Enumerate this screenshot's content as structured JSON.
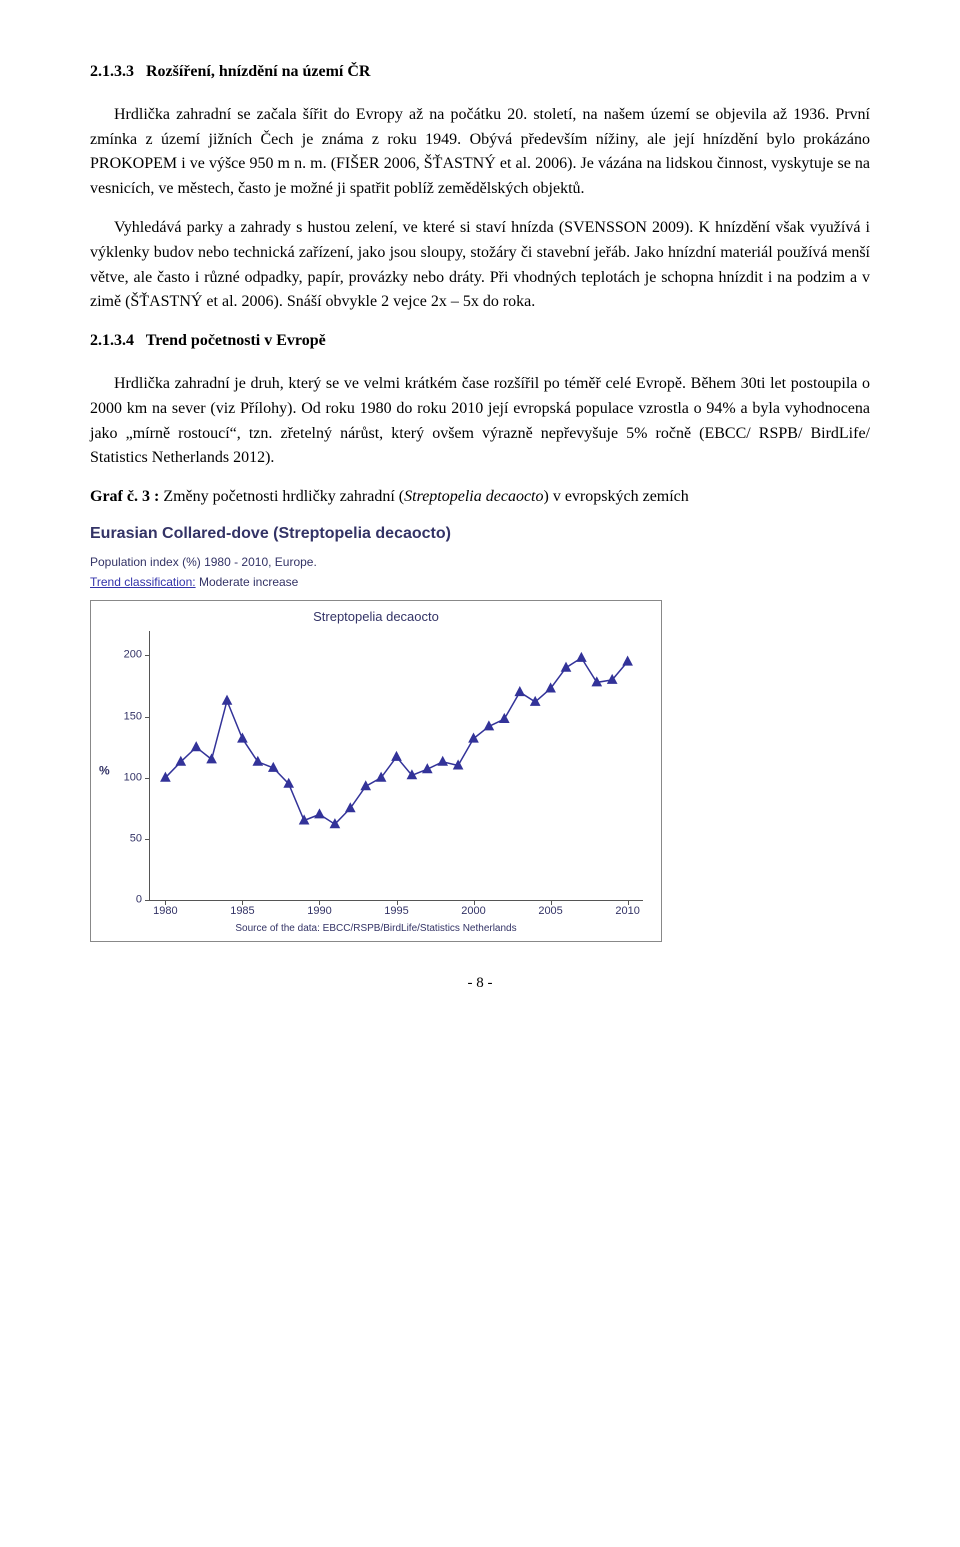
{
  "section1": {
    "number": "2.1.3.3",
    "title": "Rozšíření, hnízdění na území ČR",
    "p1": "Hrdlička zahradní se začala šířit do Evropy až na počátku 20. století, na našem území se objevila až 1936. První zmínka z území jižních Čech je známa z roku 1949. Obývá především nížiny, ale její hnízdění bylo prokázáno PROKOPEM i ve výšce 950 m n. m. (FIŠER 2006, ŠŤASTNÝ et al. 2006). Je vázána na lidskou činnost, vyskytuje se na vesnicích, ve městech, často je možné ji spatřit poblíž zemědělských objektů.",
    "p2": "Vyhledává parky a zahrady s hustou zelení, ve které si staví hnízda (SVENSSON 2009). K hnízdění však využívá i výklenky budov nebo technická zařízení, jako jsou sloupy, stožáry či stavební jeřáb. Jako hnízdní materiál používá menší větve, ale často i různé odpadky, papír, provázky nebo dráty. Při vhodných teplotách je schopna hnízdit i na podzim a v zimě (ŠŤASTNÝ et al. 2006). Snáší obvykle 2 vejce 2x – 5x do roka."
  },
  "section2": {
    "number": "2.1.3.4",
    "title": "Trend početnosti v Evropě",
    "p1": "Hrdlička zahradní je druh, který se ve velmi krátkém čase rozšířil po téměř celé Evropě. Během 30ti let postoupila o 2000 km na sever (viz Přílohy). Od roku 1980 do roku 2010 její evropská populace vzrostla o 94% a byla vyhodnocena jako „mírně rostoucí“, tzn. zřetelný nárůst, který ovšem výrazně nepřevyšuje 5% ročně (EBCC/ RSPB/ BirdLife/ Statistics Netherlands 2012)."
  },
  "graf": {
    "label_prefix": "Graf č. 3 :",
    "label_text": " Změny početnosti hrdličky zahradní (",
    "label_italic": "Streptopelia decaocto",
    "label_suffix": ") v evropských zemích"
  },
  "chart": {
    "main_title": "Eurasian Collared-dove (Streptopelia decaocto)",
    "sub1": "Population index (%) 1980 - 2010, Europe.",
    "sub2_label": "Trend classification:",
    "sub2_value": "Moderate increase",
    "inner_title": "Streptopelia decaocto",
    "source": "Source of the data: EBCC/RSPB/BirdLife/Statistics Netherlands",
    "ylabel": "%",
    "line_color": "#333399",
    "marker_fill": "#333399",
    "marker_stroke": "#333399",
    "axis_color": "#555555",
    "text_color": "#333366",
    "background": "#ffffff",
    "yticks": [
      0,
      50,
      100,
      150,
      200
    ],
    "ylim": [
      0,
      220
    ],
    "xticks": [
      1980,
      1985,
      1990,
      1995,
      2000,
      2005,
      2010
    ],
    "xlim": [
      1979,
      2011
    ],
    "years": [
      1980,
      1981,
      1982,
      1983,
      1984,
      1985,
      1986,
      1987,
      1988,
      1989,
      1990,
      1991,
      1992,
      1993,
      1994,
      1995,
      1996,
      1997,
      1998,
      1999,
      2000,
      2001,
      2002,
      2003,
      2004,
      2005,
      2006,
      2007,
      2008,
      2009,
      2010
    ],
    "values": [
      100,
      113,
      125,
      115,
      163,
      132,
      113,
      108,
      95,
      65,
      70,
      62,
      75,
      93,
      100,
      117,
      102,
      107,
      113,
      110,
      132,
      142,
      148,
      170,
      162,
      173,
      190,
      198,
      178,
      180,
      195
    ]
  },
  "pagenum": "- 8 -"
}
